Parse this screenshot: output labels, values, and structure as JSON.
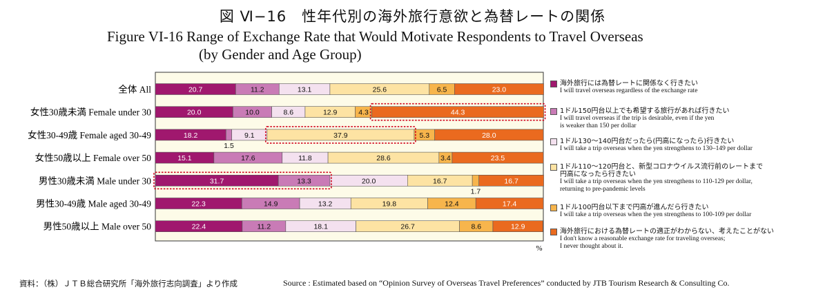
{
  "chart_data": {
    "type": "bar",
    "stacked": true,
    "orientation": "horizontal",
    "title_jp": "図 Ⅵ−16　性年代別の海外旅行意欲と為替レートの関係",
    "title_en_line1": "Figure VI-16  Range of Exchange Rate that Would Motivate Respondents to Travel Overseas",
    "title_en_line2": "(by Gender and Age Group)",
    "unit": "%",
    "xlim": [
      0,
      100
    ],
    "categories": [
      "全体 All",
      "女性30歳未満 Female under 30",
      "女性30-49歳 Female aged 30-49",
      "女性50歳以上 Female over 50",
      "男性30歳未満 Male under 30",
      "男性30-49歳 Male aged 30-49",
      "男性50歳以上 Male over 50"
    ],
    "series": [
      {
        "name_jp": "海外旅行には為替レートに関係なく行きたい",
        "name_en": "I will travel overseas regardless of the exchange rate",
        "color": "#a0186e",
        "label_color": "#ffffff",
        "values": [
          20.7,
          20.0,
          18.2,
          15.1,
          31.7,
          22.3,
          22.4
        ]
      },
      {
        "name_jp": "1ドル150円台以上でも希望する旅行があれば行きたい",
        "name_en": "I will travel overseas if the trip is desirable, even if the yen is weaker than 150 per dollar",
        "color": "#c97bb6",
        "label_color": "#111111",
        "values": [
          11.2,
          10.0,
          1.5,
          17.6,
          13.3,
          14.9,
          11.2
        ]
      },
      {
        "name_jp": "1ドル130〜140円台だったら(円高になったら)行きたい",
        "name_en": "I will take a trip overseas when the yen strengthens to 130–149 per dollar",
        "color": "#f4e1ef",
        "label_color": "#111111",
        "values": [
          13.1,
          8.6,
          9.1,
          11.8,
          20.0,
          13.2,
          18.1
        ]
      },
      {
        "name_jp": "1ドル110〜120円台と、新型コロナウイルス流行前のレートまで円高になったら行きたい",
        "name_en": "I will take a trip overseas when the yen strengthens to 110-129 per dollar, returning to pre-pandemic levels",
        "color": "#fde3a3",
        "label_color": "#111111",
        "values": [
          25.6,
          12.9,
          37.9,
          28.6,
          16.7,
          19.8,
          26.7
        ]
      },
      {
        "name_jp": "1ドル100円台以下まで円高が進んだら行きたい",
        "name_en": "I will take a trip overseas when the yen strengthens to 100-109 per dollar",
        "color": "#f7b54c",
        "label_color": "#111111",
        "values": [
          6.5,
          4.3,
          5.3,
          3.4,
          1.7,
          12.4,
          8.6
        ]
      },
      {
        "name_jp": "海外旅行における為替レートの適正がわからない、考えたことがない",
        "name_en": "I don't know a reasonable exchange rate for traveling overseas; I never thought about it.",
        "color": "#ea6a1f",
        "label_color": "#ffffff",
        "values": [
          23.0,
          44.3,
          28.0,
          23.5,
          16.7,
          17.4,
          12.9
        ]
      }
    ],
    "highlights": [
      {
        "row": 1,
        "series": [
          5
        ]
      },
      {
        "row": 2,
        "series": [
          3
        ]
      },
      {
        "row": 4,
        "series": [
          0,
          1
        ]
      }
    ],
    "outside_labels": [
      {
        "row": 2,
        "series": 1
      },
      {
        "row": 4,
        "series": 4
      }
    ]
  },
  "legend": {
    "items": [
      {
        "jp": "海外旅行には為替レートに関係なく行きたい",
        "en": [
          "I will travel overseas regardless of the exchange rate"
        ]
      },
      {
        "jp": "1ドル150円台以上でも希望する旅行があれば行きたい",
        "en": [
          "I will travel overseas if the trip is desirable, even if the yen",
          "is weaker than 150 per dollar"
        ]
      },
      {
        "jp": "1ドル130〜140円台だったら(円高になったら)行きたい",
        "en": [
          "I will take a trip overseas when the yen strengthens to 130–149 per dollar"
        ]
      },
      {
        "jp": "1ドル110〜120円台と、新型コロナウイルス流行前のレートまで",
        "jp2": "円高になったら行きたい",
        "en": [
          "I will take a trip overseas when the yen strengthens to 110-129 per dollar,",
          "returning to pre-pandemic levels"
        ]
      },
      {
        "jp": "1ドル100円台以下まで円高が進んだら行きたい",
        "en": [
          "I will take a trip overseas when the yen strengthens to 100-109 per dollar"
        ]
      },
      {
        "jp": "海外旅行における為替レートの適正がわからない、考えたことがない",
        "en": [
          "I don't know a reasonable exchange rate for traveling overseas;",
          "I never thought about it."
        ]
      }
    ]
  },
  "source": {
    "jp": "資料：（株）ＪＴＢ総合研究所「海外旅行志向調査」より作成",
    "en": "Source : Estimated based on “Opinion Survey of Overseas Travel Preferences” conducted by JTB Tourism Research & Consulting Co."
  }
}
